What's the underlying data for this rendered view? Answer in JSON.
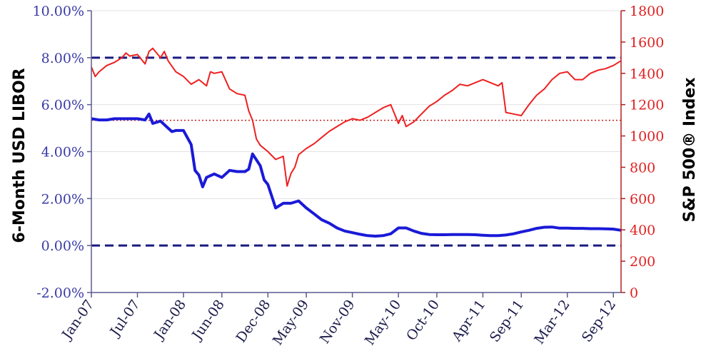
{
  "chart_data": {
    "type": "line",
    "title": "",
    "xlabel": "",
    "ylabel_left": "6-Month USD LIBOR",
    "ylabel_right": "S&P 500® Index",
    "ylim_left": [
      -2,
      10
    ],
    "ylim_right": [
      0,
      1800
    ],
    "left_ticks": [
      "-2.00%",
      "0.00%",
      "2.00%",
      "4.00%",
      "6.00%",
      "8.00%",
      "10.00%"
    ],
    "right_ticks": [
      "0",
      "200",
      "400",
      "600",
      "800",
      "1000",
      "1200",
      "1400",
      "1600",
      "1800"
    ],
    "x_tick_labels": [
      "Jan-07",
      "Jul-07",
      "Jan-08",
      "Jun-08",
      "Dec-08",
      "May-09",
      "Nov-09",
      "May-10",
      "Oct-10",
      "Apr-11",
      "Sep-11",
      "Mar-12",
      "Sep-12"
    ],
    "x_tick_positions": [
      0,
      6,
      12,
      17,
      23,
      28,
      34,
      40,
      45,
      51,
      56,
      62,
      68
    ],
    "grid": true,
    "reference_lines": [
      {
        "axis": "left",
        "value": 8.0,
        "style": "dashed",
        "color": "#1a1a80"
      },
      {
        "axis": "left",
        "value": 0.0,
        "style": "dashed",
        "color": "#1a1a80"
      },
      {
        "axis": "right",
        "value": 1100,
        "style": "dotted",
        "color": "#c02020"
      }
    ],
    "series": [
      {
        "axis": "left",
        "color": "#1a1ad8",
        "x": [
          0,
          1,
          2,
          3,
          4,
          5,
          6,
          7,
          7.5,
          8,
          9,
          10,
          10.5,
          11,
          12,
          13,
          13.5,
          14,
          14.5,
          15,
          16,
          17,
          18,
          19,
          20,
          20.5,
          21,
          22,
          22.5,
          23,
          24,
          25,
          26,
          27,
          28,
          29,
          30,
          31,
          32,
          33,
          34,
          35,
          36,
          37,
          38,
          39,
          40,
          41,
          42,
          43,
          44,
          45,
          46,
          47,
          48,
          49,
          50,
          51,
          52,
          53,
          54,
          55,
          56,
          57,
          58,
          59,
          60,
          61,
          62,
          63,
          64,
          65,
          66,
          67,
          68,
          69
        ],
        "y": [
          5.4,
          5.35,
          5.35,
          5.4,
          5.4,
          5.4,
          5.4,
          5.35,
          5.6,
          5.2,
          5.3,
          5.0,
          4.85,
          4.9,
          4.9,
          4.3,
          3.2,
          3.0,
          2.5,
          2.9,
          3.05,
          2.9,
          3.2,
          3.15,
          3.15,
          3.25,
          3.9,
          3.4,
          2.8,
          2.6,
          1.6,
          1.8,
          1.8,
          1.9,
          1.6,
          1.35,
          1.1,
          0.95,
          0.75,
          0.62,
          0.55,
          0.48,
          0.42,
          0.4,
          0.42,
          0.5,
          0.75,
          0.75,
          0.62,
          0.52,
          0.47,
          0.46,
          0.46,
          0.47,
          0.47,
          0.47,
          0.46,
          0.44,
          0.42,
          0.42,
          0.45,
          0.5,
          0.58,
          0.65,
          0.73,
          0.78,
          0.79,
          0.74,
          0.74,
          0.73,
          0.73,
          0.72,
          0.72,
          0.71,
          0.7,
          0.65
        ]
      },
      {
        "axis": "right",
        "color": "#ee2020",
        "x": [
          0,
          0.5,
          1,
          2,
          3,
          4,
          4.5,
          5,
          6,
          7,
          7.5,
          8,
          9,
          9.5,
          10,
          11,
          12,
          13,
          14,
          15,
          15.5,
          16,
          17,
          18,
          19,
          20,
          20.5,
          21,
          21.5,
          22,
          23,
          24,
          25,
          25.5,
          26,
          26.5,
          27,
          28,
          29,
          30,
          31,
          32,
          33,
          34,
          35,
          36,
          37,
          38,
          39,
          40,
          40.5,
          41,
          42,
          43,
          44,
          45,
          46,
          47,
          48,
          49,
          50,
          51,
          52,
          53,
          53.5,
          54,
          55,
          56,
          57,
          58,
          59,
          60,
          61,
          62,
          63,
          64,
          65,
          66,
          67,
          68,
          69
        ],
        "y": [
          1440,
          1380,
          1410,
          1450,
          1470,
          1500,
          1530,
          1510,
          1520,
          1460,
          1540,
          1560,
          1500,
          1540,
          1480,
          1410,
          1380,
          1330,
          1360,
          1320,
          1410,
          1400,
          1410,
          1300,
          1270,
          1260,
          1160,
          1100,
          980,
          940,
          900,
          850,
          870,
          680,
          760,
          800,
          880,
          920,
          950,
          990,
          1030,
          1060,
          1090,
          1110,
          1100,
          1120,
          1150,
          1180,
          1200,
          1080,
          1130,
          1060,
          1090,
          1140,
          1190,
          1220,
          1260,
          1290,
          1330,
          1320,
          1340,
          1360,
          1340,
          1320,
          1340,
          1150,
          1140,
          1130,
          1200,
          1260,
          1300,
          1360,
          1400,
          1410,
          1360,
          1360,
          1400,
          1420,
          1430,
          1450,
          1480
        ]
      }
    ]
  }
}
